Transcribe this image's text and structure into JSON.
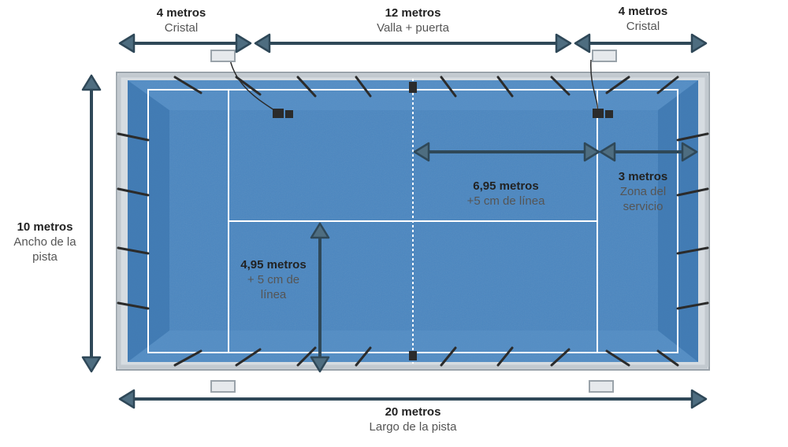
{
  "colors": {
    "court": "#4a86c0",
    "court_edge": "#3a6fa5",
    "lines": "#ffffff",
    "frame": "#c9d0d6",
    "frame_dark": "#2b2b2b",
    "arrow": "#2f4858"
  },
  "labels": {
    "top_left": {
      "value": "4 metros",
      "desc": "Cristal"
    },
    "top_middle": {
      "value": "12 metros",
      "desc": "Valla + puerta"
    },
    "top_right": {
      "value": "4 metros",
      "desc": "Cristal"
    },
    "left": {
      "value": "10 metros",
      "desc_line1": "Ancho de la",
      "desc_line2": "pista"
    },
    "center_right": {
      "value": "6,95 metros",
      "desc": "+5 cm de línea"
    },
    "service": {
      "value": "3 metros",
      "desc_line1": "Zona del",
      "desc_line2": "servicio"
    },
    "center_left": {
      "value": "4,95 metros",
      "desc_line1": "+ 5 cm de",
      "desc_line2": "línea"
    },
    "bottom": {
      "value": "20 metros",
      "desc": "Largo de la pista"
    }
  }
}
